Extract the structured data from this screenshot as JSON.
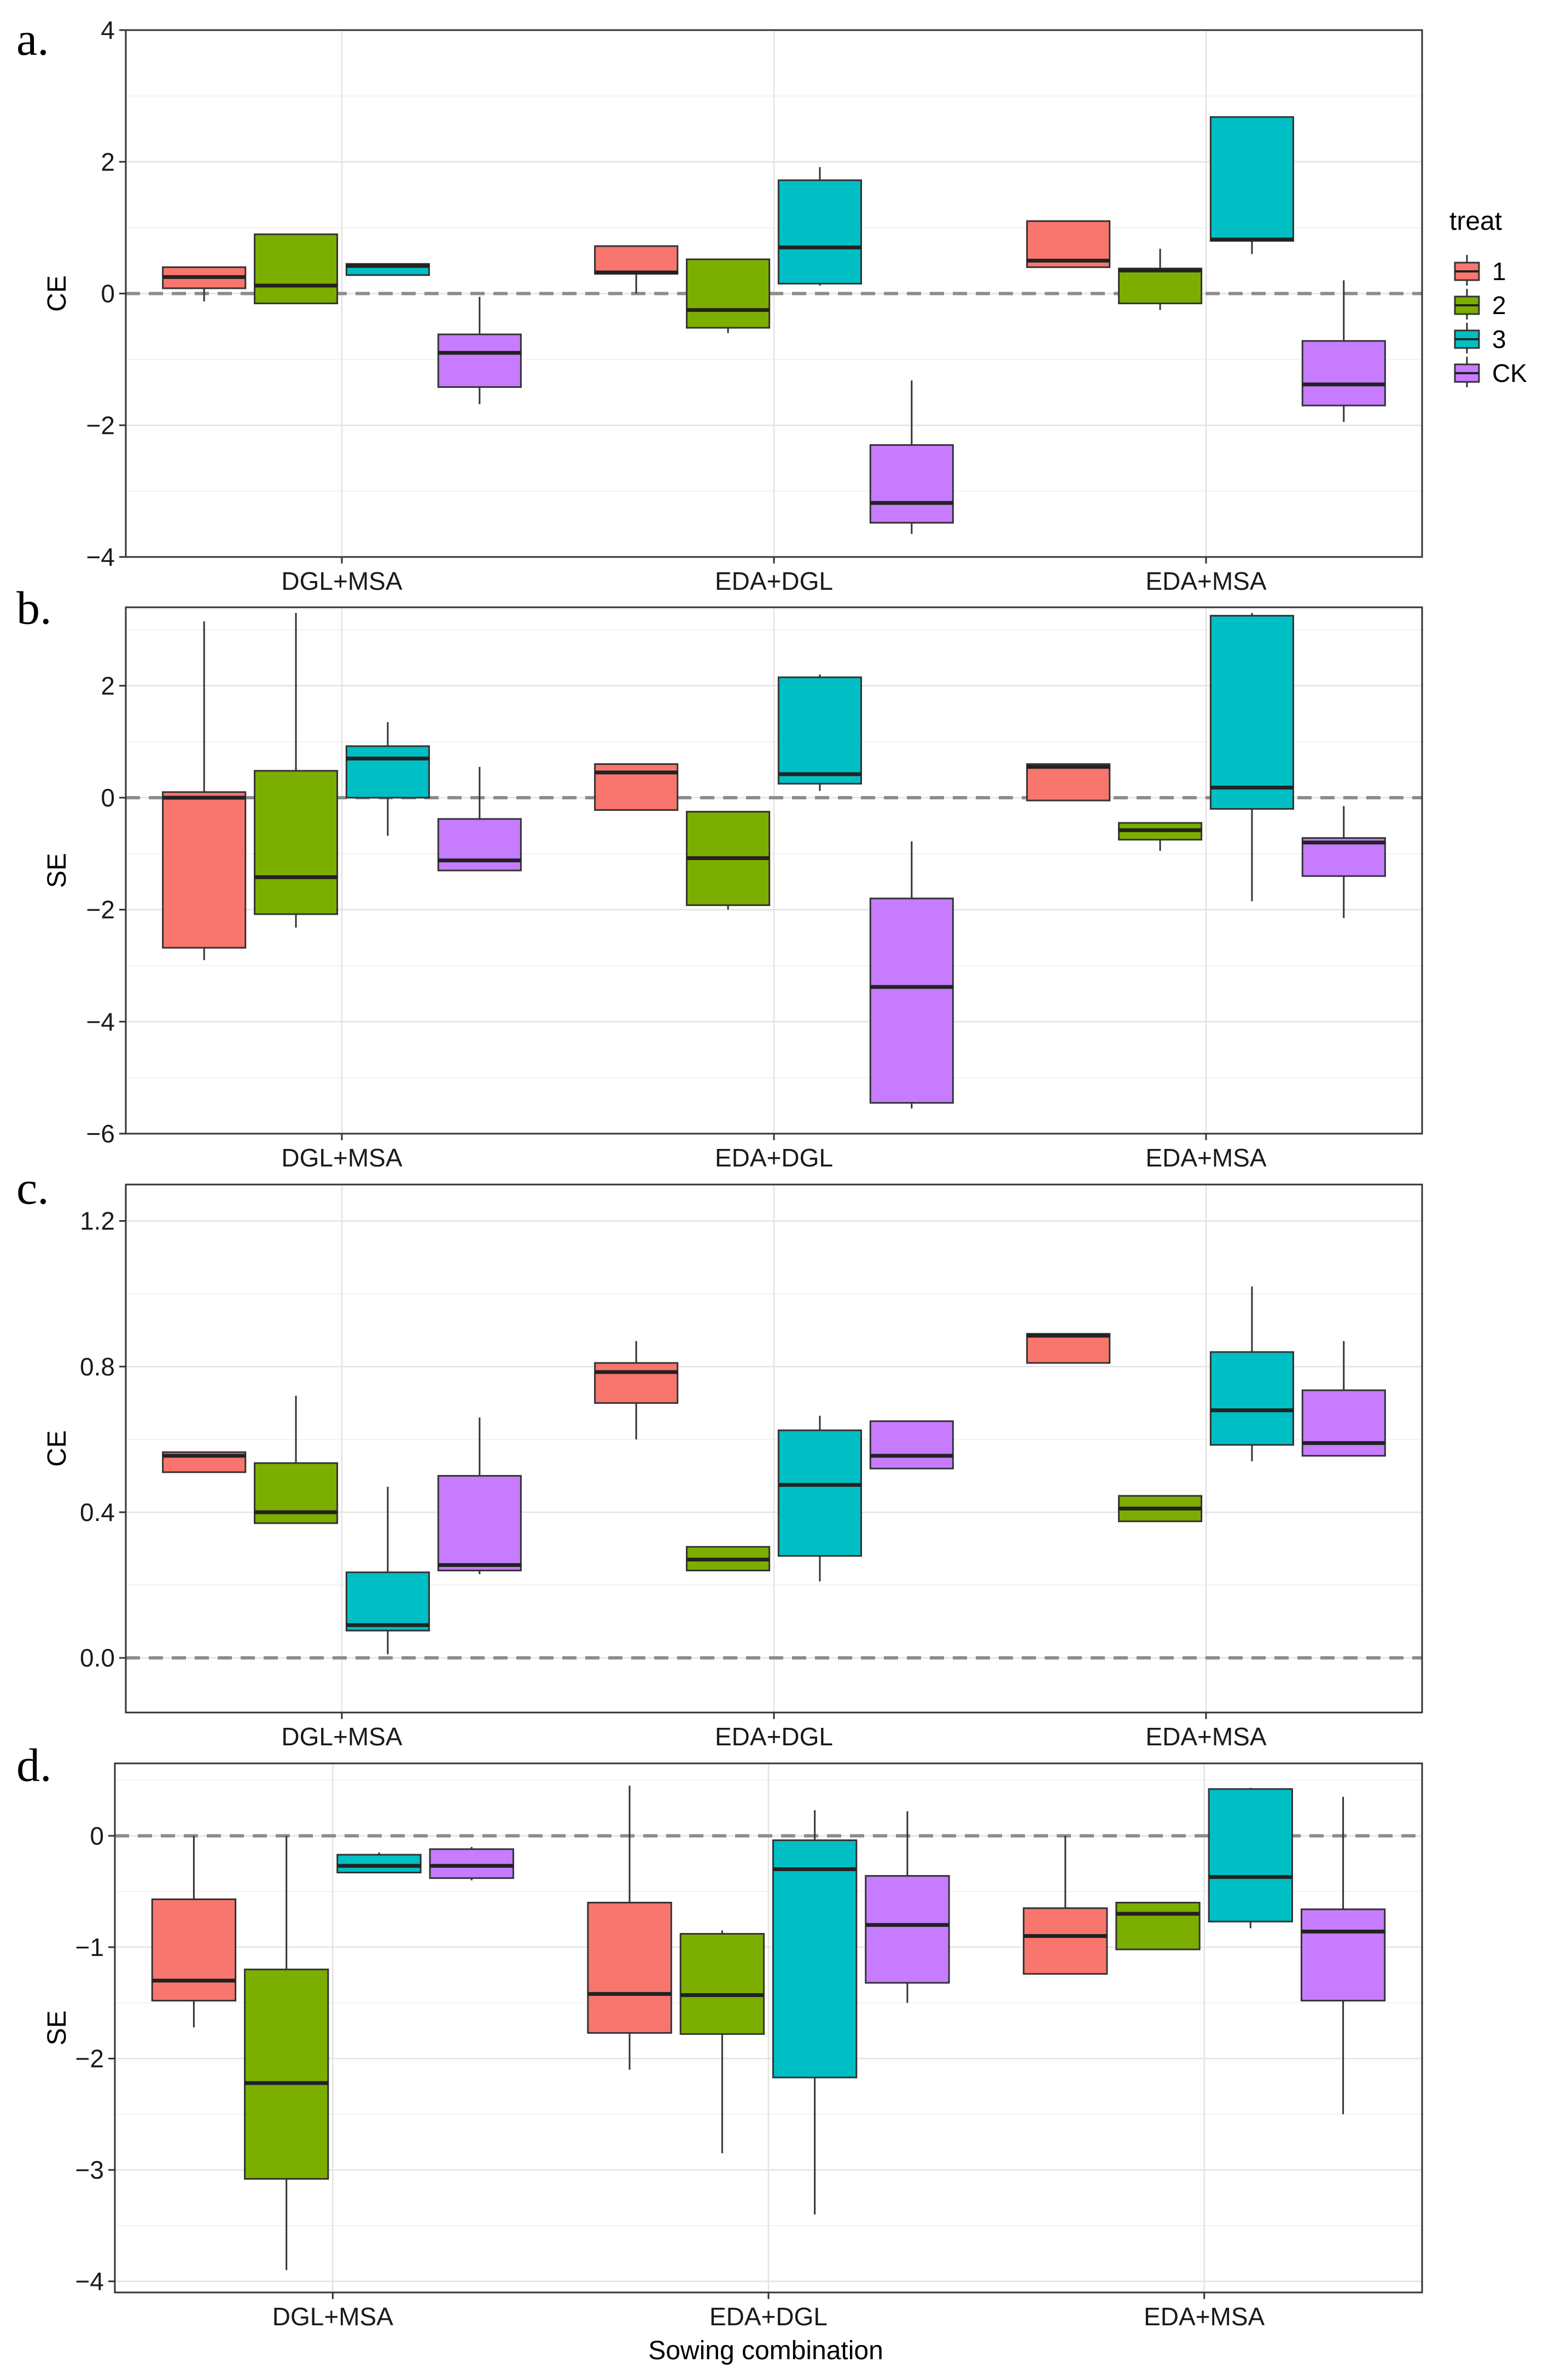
{
  "legend": {
    "title": "treat",
    "items": [
      {
        "label": "1",
        "color": "#F8766D"
      },
      {
        "label": "2",
        "color": "#7CAE00"
      },
      {
        "label": "3",
        "color": "#00BFC4"
      },
      {
        "label": "CK",
        "color": "#C77CFF"
      }
    ]
  },
  "xlabel": "Sowing combination",
  "chart_data": [
    {
      "panel": "a.",
      "type": "boxplot",
      "ylabel": "CE",
      "ylim": [
        -4,
        4
      ],
      "yticks": [
        -4,
        -2,
        0,
        2,
        4
      ],
      "yticklabels": [
        "−4",
        "−2",
        "0",
        "2",
        "4"
      ],
      "categories": [
        "DGL+MSA",
        "EDA+DGL",
        "EDA+MSA"
      ],
      "series": [
        {
          "name": "1",
          "boxes": [
            {
              "min": -0.12,
              "q1": 0.08,
              "median": 0.25,
              "q3": 0.4,
              "max": 0.4
            },
            {
              "min": 0.0,
              "q1": 0.3,
              "median": 0.32,
              "q3": 0.72,
              "max": 0.72
            },
            {
              "min": 0.4,
              "q1": 0.4,
              "median": 0.5,
              "q3": 1.1,
              "max": 1.1
            }
          ]
        },
        {
          "name": "2",
          "boxes": [
            {
              "min": -0.15,
              "q1": -0.15,
              "median": 0.12,
              "q3": 0.9,
              "max": 0.9
            },
            {
              "min": -0.6,
              "q1": -0.52,
              "median": -0.25,
              "q3": 0.52,
              "max": 0.52
            },
            {
              "min": -0.25,
              "q1": -0.15,
              "median": 0.35,
              "q3": 0.38,
              "max": 0.68
            }
          ]
        },
        {
          "name": "3",
          "boxes": [
            {
              "min": 0.28,
              "q1": 0.28,
              "median": 0.42,
              "q3": 0.45,
              "max": 0.45
            },
            {
              "min": 0.12,
              "q1": 0.15,
              "median": 0.7,
              "q3": 1.72,
              "max": 1.92
            },
            {
              "min": 0.6,
              "q1": 0.8,
              "median": 0.82,
              "q3": 2.68,
              "max": 2.68
            }
          ]
        },
        {
          "name": "CK",
          "boxes": [
            {
              "min": -1.68,
              "q1": -1.42,
              "median": -0.9,
              "q3": -0.62,
              "max": -0.05
            },
            {
              "min": -3.65,
              "q1": -3.48,
              "median": -3.18,
              "q3": -2.3,
              "max": -1.32
            },
            {
              "min": -1.95,
              "q1": -1.7,
              "median": -1.38,
              "q3": -0.72,
              "max": 0.2
            }
          ]
        }
      ]
    },
    {
      "panel": "b.",
      "type": "boxplot",
      "ylabel": "SE",
      "ylim": [
        -6,
        3.4
      ],
      "yticks": [
        -6,
        -4,
        -2,
        0,
        2
      ],
      "yticklabels": [
        "−6",
        "−4",
        "−2",
        "0",
        "2"
      ],
      "categories": [
        "DGL+MSA",
        "EDA+DGL",
        "EDA+MSA"
      ],
      "series": [
        {
          "name": "1",
          "boxes": [
            {
              "min": -2.9,
              "q1": -2.68,
              "median": 0.0,
              "q3": 0.1,
              "max": 3.15
            },
            {
              "min": -0.22,
              "q1": -0.22,
              "median": 0.45,
              "q3": 0.6,
              "max": 0.6
            },
            {
              "min": -0.05,
              "q1": -0.05,
              "median": 0.55,
              "q3": 0.6,
              "max": 0.6
            }
          ]
        },
        {
          "name": "2",
          "boxes": [
            {
              "min": -2.32,
              "q1": -2.08,
              "median": -1.42,
              "q3": 0.48,
              "max": 3.3
            },
            {
              "min": -2.0,
              "q1": -1.92,
              "median": -1.08,
              "q3": -0.25,
              "max": -0.25
            },
            {
              "min": -0.95,
              "q1": -0.75,
              "median": -0.58,
              "q3": -0.45,
              "max": -0.45
            }
          ]
        },
        {
          "name": "3",
          "boxes": [
            {
              "min": -0.68,
              "q1": 0.0,
              "median": 0.7,
              "q3": 0.92,
              "max": 1.35
            },
            {
              "min": 0.12,
              "q1": 0.25,
              "median": 0.42,
              "q3": 2.15,
              "max": 2.2
            },
            {
              "min": -1.85,
              "q1": -0.2,
              "median": 0.18,
              "q3": 3.25,
              "max": 3.3
            }
          ]
        },
        {
          "name": "CK",
          "boxes": [
            {
              "min": -1.3,
              "q1": -1.3,
              "median": -1.12,
              "q3": -0.38,
              "max": 0.55
            },
            {
              "min": -5.55,
              "q1": -5.45,
              "median": -3.38,
              "q3": -1.8,
              "max": -0.78
            },
            {
              "min": -2.15,
              "q1": -1.4,
              "median": -0.8,
              "q3": -0.72,
              "max": -0.15
            }
          ]
        }
      ]
    },
    {
      "panel": "c.",
      "type": "boxplot",
      "ylabel": "CE",
      "ylim": [
        -0.15,
        1.3
      ],
      "yticks": [
        0.0,
        0.4,
        0.8,
        1.2
      ],
      "yticklabels": [
        "0.0",
        "0.4",
        "0.8",
        "1.2"
      ],
      "categories": [
        "DGL+MSA",
        "EDA+DGL",
        "EDA+MSA"
      ],
      "series": [
        {
          "name": "1",
          "boxes": [
            {
              "min": 0.51,
              "q1": 0.51,
              "median": 0.555,
              "q3": 0.565,
              "max": 0.565
            },
            {
              "min": 0.6,
              "q1": 0.7,
              "median": 0.785,
              "q3": 0.81,
              "max": 0.87
            },
            {
              "min": 0.81,
              "q1": 0.81,
              "median": 0.885,
              "q3": 0.89,
              "max": 0.89
            }
          ]
        },
        {
          "name": "2",
          "boxes": [
            {
              "min": 0.37,
              "q1": 0.37,
              "median": 0.4,
              "q3": 0.535,
              "max": 0.72
            },
            {
              "min": 0.24,
              "q1": 0.24,
              "median": 0.27,
              "q3": 0.305,
              "max": 0.305
            },
            {
              "min": 0.375,
              "q1": 0.375,
              "median": 0.41,
              "q3": 0.445,
              "max": 0.445
            }
          ]
        },
        {
          "name": "3",
          "boxes": [
            {
              "min": 0.01,
              "q1": 0.075,
              "median": 0.09,
              "q3": 0.235,
              "max": 0.47
            },
            {
              "min": 0.21,
              "q1": 0.28,
              "median": 0.475,
              "q3": 0.625,
              "max": 0.665
            },
            {
              "min": 0.54,
              "q1": 0.585,
              "median": 0.68,
              "q3": 0.84,
              "max": 1.02
            }
          ]
        },
        {
          "name": "CK",
          "boxes": [
            {
              "min": 0.23,
              "q1": 0.24,
              "median": 0.255,
              "q3": 0.5,
              "max": 0.66
            },
            {
              "min": 0.52,
              "q1": 0.52,
              "median": 0.555,
              "q3": 0.65,
              "max": 0.65
            },
            {
              "min": 0.555,
              "q1": 0.555,
              "median": 0.59,
              "q3": 0.735,
              "max": 0.87
            }
          ]
        }
      ]
    },
    {
      "panel": "d.",
      "type": "boxplot",
      "ylabel": "SE",
      "ylim": [
        -4.1,
        0.65
      ],
      "yticks": [
        -4,
        -3,
        -2,
        -1,
        0
      ],
      "yticklabels": [
        "−4",
        "−3",
        "−2",
        "−1",
        "0"
      ],
      "categories": [
        "DGL+MSA",
        "EDA+DGL",
        "EDA+MSA"
      ],
      "series": [
        {
          "name": "1",
          "boxes": [
            {
              "min": -1.72,
              "q1": -1.48,
              "median": -1.3,
              "q3": -0.57,
              "max": 0.0
            },
            {
              "min": -2.1,
              "q1": -1.77,
              "median": -1.42,
              "q3": -0.6,
              "max": 0.45
            },
            {
              "min": -1.24,
              "q1": -1.24,
              "median": -0.9,
              "q3": -0.65,
              "max": 0.0
            }
          ]
        },
        {
          "name": "2",
          "boxes": [
            {
              "min": -3.9,
              "q1": -3.08,
              "median": -2.22,
              "q3": -1.2,
              "max": 0.0
            },
            {
              "min": -2.85,
              "q1": -1.78,
              "median": -1.43,
              "q3": -0.88,
              "max": -0.85
            },
            {
              "min": -1.02,
              "q1": -1.02,
              "median": -0.7,
              "q3": -0.6,
              "max": -0.6
            }
          ]
        },
        {
          "name": "3",
          "boxes": [
            {
              "min": -0.33,
              "q1": -0.33,
              "median": -0.27,
              "q3": -0.17,
              "max": -0.15
            },
            {
              "min": -3.4,
              "q1": -2.17,
              "median": -0.3,
              "q3": -0.04,
              "max": 0.23
            },
            {
              "min": -0.83,
              "q1": -0.77,
              "median": -0.37,
              "q3": 0.42,
              "max": 0.43
            }
          ]
        },
        {
          "name": "CK",
          "boxes": [
            {
              "min": -0.4,
              "q1": -0.38,
              "median": -0.27,
              "q3": -0.12,
              "max": -0.1
            },
            {
              "min": -1.5,
              "q1": -1.32,
              "median": -0.8,
              "q3": -0.36,
              "max": 0.22
            },
            {
              "min": -2.5,
              "q1": -1.48,
              "median": -0.86,
              "q3": -0.66,
              "max": 0.35
            }
          ]
        }
      ]
    }
  ]
}
